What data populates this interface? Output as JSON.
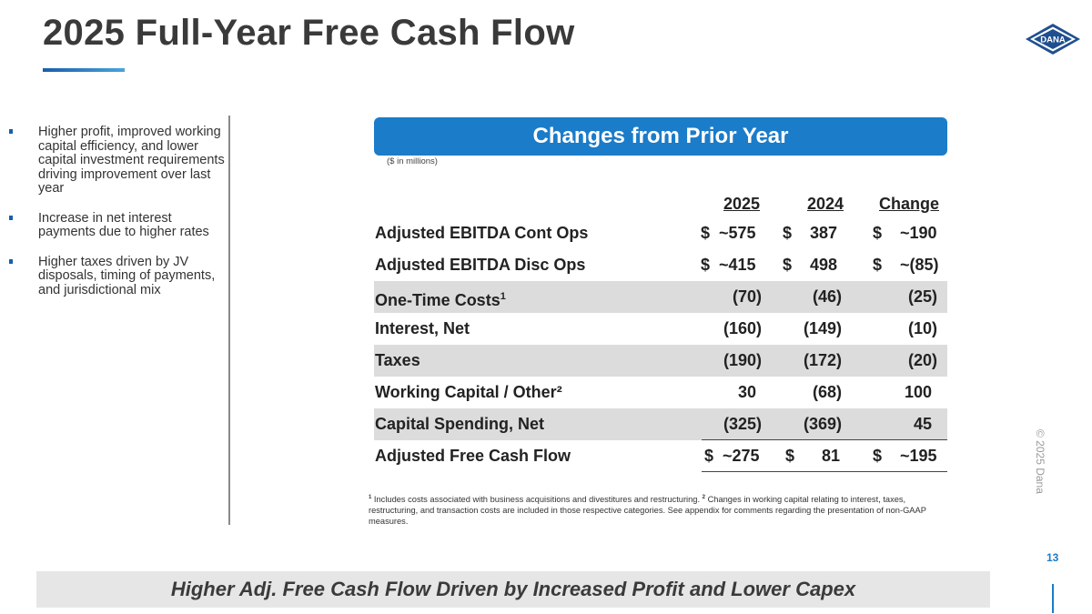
{
  "title": "2025 Full-Year Free Cash Flow",
  "logo_text": "DANA",
  "bullets": [
    "Higher profit, improved working capital efficiency, and lower capital investment requirements driving improvement over last year",
    "Increase in net interest payments due to higher rates",
    "Higher taxes driven by JV disposals, timing of payments, and jurisdictional mix"
  ],
  "table": {
    "banner": "Changes from Prior Year",
    "units": "($ in millions)",
    "headers": [
      "2025",
      "2024",
      "Change"
    ],
    "rows": [
      {
        "label": "Adjusted EBITDA Cont Ops",
        "v2025": "$  ~575",
        "v2024": "$    387",
        "change": "$    ~190"
      },
      {
        "label": "Adjusted EBITDA Disc Ops",
        "v2025": "$  ~415",
        "v2024": "$    498",
        "change": "$    ~(85)"
      },
      {
        "label": "One-Time Costs",
        "sup": "1",
        "v2025": "(70)",
        "v2024": "(46)",
        "change": "(25)"
      },
      {
        "label": "Interest, Net",
        "v2025": "(160)",
        "v2024": "(149)",
        "change": "(10)"
      },
      {
        "label": "Taxes",
        "v2025": "(190)",
        "v2024": "(172)",
        "change": "(20)"
      },
      {
        "label": "Working Capital / Other²",
        "v2025": "30",
        "v2024": "(68)",
        "change": "100"
      },
      {
        "label": "Capital Spending, Net",
        "v2025": "(325)",
        "v2024": "(369)",
        "change": "45"
      },
      {
        "label": "Adjusted Free Cash Flow",
        "v2025": "$  ~275",
        "v2024": "$      81",
        "change": "$    ~195"
      }
    ]
  },
  "footnote": {
    "n1": "1",
    "t1": " Includes costs associated with business acquisitions and divestitures and restructuring. ",
    "n2": "2",
    "t2": " Changes in working capital relating to interest, taxes, restructuring, and transaction costs are included in those respective categories.  See appendix for comments regarding the presentation of non-GAAP measures."
  },
  "copyright": "© 2025 Dana",
  "page_number": "13",
  "conclusion": "Higher Adj. Free Cash Flow Driven by Increased Profit and Lower Capex",
  "colors": {
    "accent": "#1b7cc9",
    "row_shade": "#dcdcdc",
    "title": "#3a3a3a"
  }
}
